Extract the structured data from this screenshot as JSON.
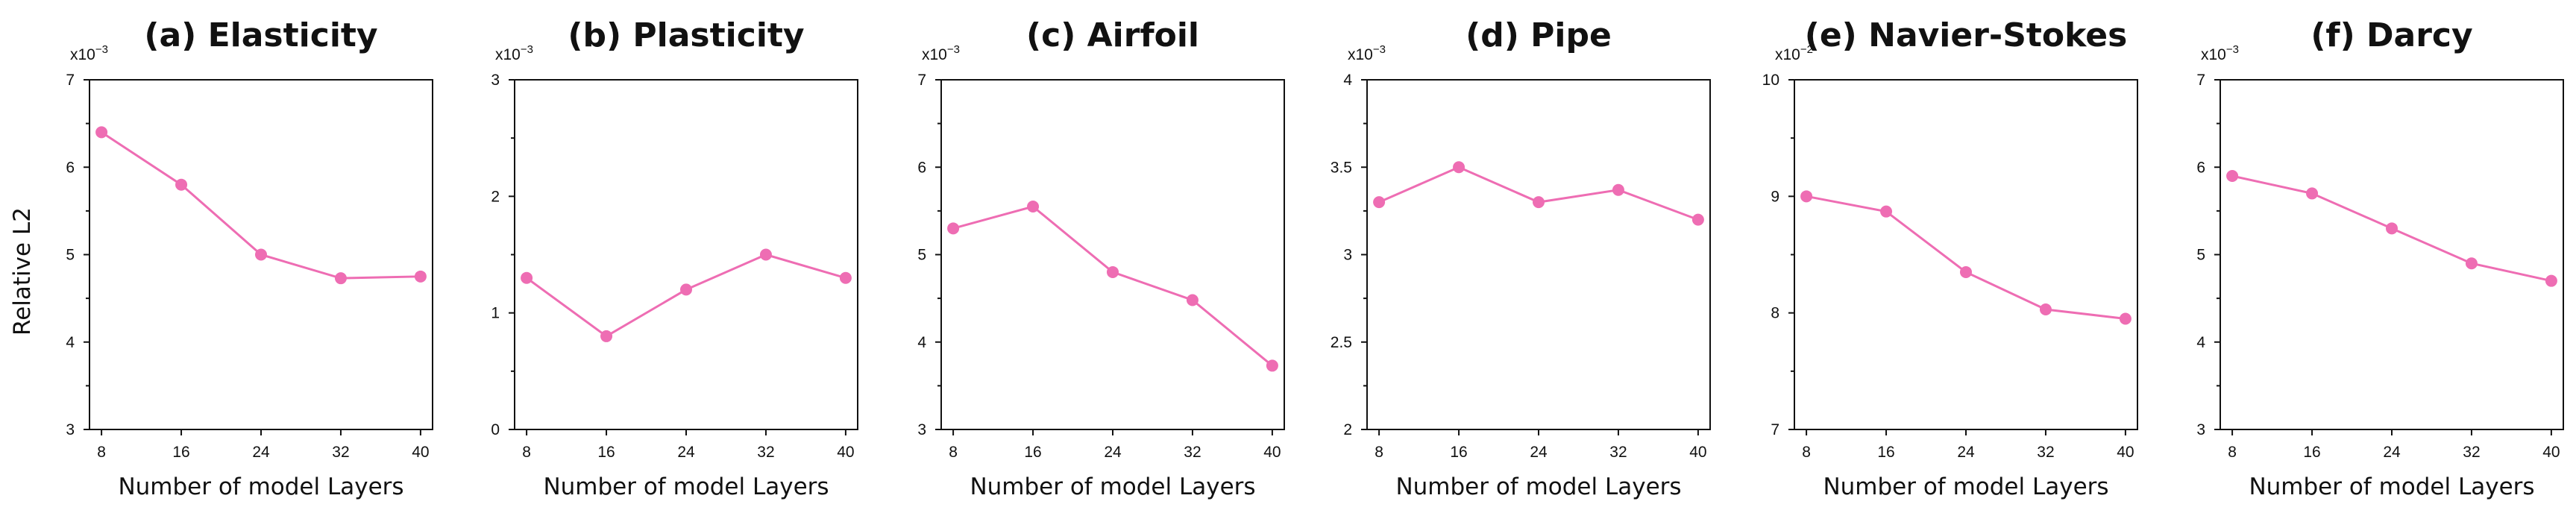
{
  "shared": {
    "ylabel": "Relative L2",
    "line_color": "#ee6db3"
  },
  "chart_data": [
    {
      "type": "line",
      "title": "(a) Elasticity",
      "xlabel": "Number of model Layers",
      "x": [
        8,
        16,
        24,
        32,
        40
      ],
      "xticks": [
        "8",
        "16",
        "24",
        "32",
        "40"
      ],
      "values": [
        6.4,
        5.8,
        5.0,
        4.73,
        4.75
      ],
      "ylim": [
        3,
        7
      ],
      "yticks": [
        3,
        4,
        5,
        6,
        7
      ],
      "ytick_labels": [
        "3",
        "4",
        "5",
        "6",
        "7"
      ],
      "multiplier_base": "x10",
      "multiplier_exp": "−3"
    },
    {
      "type": "line",
      "title": "(b) Plasticity",
      "xlabel": "Number of model Layers",
      "x": [
        8,
        16,
        24,
        32,
        40
      ],
      "xticks": [
        "8",
        "16",
        "24",
        "32",
        "40"
      ],
      "values": [
        1.3,
        0.8,
        1.2,
        1.5,
        1.3
      ],
      "ylim": [
        0,
        3
      ],
      "yticks": [
        0,
        1,
        2,
        3
      ],
      "ytick_labels": [
        "0",
        "1",
        "2",
        "3"
      ],
      "multiplier_base": "x10",
      "multiplier_exp": "−3"
    },
    {
      "type": "line",
      "title": "(c) Airfoil",
      "xlabel": "Number of model Layers",
      "x": [
        8,
        16,
        24,
        32,
        40
      ],
      "xticks": [
        "8",
        "16",
        "24",
        "32",
        "40"
      ],
      "values": [
        5.3,
        5.55,
        4.8,
        4.48,
        3.73
      ],
      "ylim": [
        3,
        7
      ],
      "yticks": [
        3,
        4,
        5,
        6,
        7
      ],
      "ytick_labels": [
        "3",
        "4",
        "5",
        "6",
        "7"
      ],
      "multiplier_base": "x10",
      "multiplier_exp": "−3"
    },
    {
      "type": "line",
      "title": "(d) Pipe",
      "xlabel": "Number of model Layers",
      "x": [
        8,
        16,
        24,
        32,
        40
      ],
      "xticks": [
        "8",
        "16",
        "24",
        "32",
        "40"
      ],
      "values": [
        3.3,
        3.5,
        3.3,
        3.37,
        3.2
      ],
      "ylim": [
        2,
        4
      ],
      "yticks": [
        2,
        2.5,
        3,
        3.5,
        4
      ],
      "ytick_labels": [
        "2",
        "2.5",
        "3",
        "3.5",
        "4"
      ],
      "multiplier_base": "x10",
      "multiplier_exp": "−3"
    },
    {
      "type": "line",
      "title": "(e) Navier-Stokes",
      "xlabel": "Number of model Layers",
      "x": [
        8,
        16,
        24,
        32,
        40
      ],
      "xticks": [
        "8",
        "16",
        "24",
        "32",
        "40"
      ],
      "values": [
        9.0,
        8.87,
        8.35,
        8.03,
        7.95
      ],
      "ylim": [
        7,
        10
      ],
      "yticks": [
        7,
        8,
        9,
        10
      ],
      "ytick_labels": [
        "7",
        "8",
        "9",
        "10"
      ],
      "multiplier_base": "x10",
      "multiplier_exp": "−2"
    },
    {
      "type": "line",
      "title": "(f) Darcy",
      "xlabel": "Number of model Layers",
      "x": [
        8,
        16,
        24,
        32,
        40
      ],
      "xticks": [
        "8",
        "16",
        "24",
        "32",
        "40"
      ],
      "values": [
        5.9,
        5.7,
        5.3,
        4.9,
        4.7
      ],
      "ylim": [
        3,
        7
      ],
      "yticks": [
        3,
        4,
        5,
        6,
        7
      ],
      "ytick_labels": [
        "3",
        "4",
        "5",
        "6",
        "7"
      ],
      "multiplier_base": "x10",
      "multiplier_exp": "−3"
    }
  ]
}
